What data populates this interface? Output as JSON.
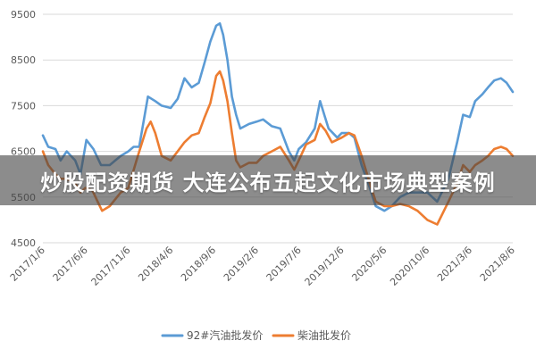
{
  "banner": {
    "title": "炒股配资期货 大连公布五起文化市场典型案例"
  },
  "colors": {
    "gasoline": "#5b9bd5",
    "diesel": "#ed7d31",
    "grid": "#d9d9d9",
    "text": "#595959"
  },
  "chart_data": {
    "type": "line",
    "title": "",
    "xlabel": "",
    "ylabel": "",
    "ylim": [
      4500,
      9500
    ],
    "yticks": [
      4500,
      5500,
      6500,
      7500,
      8500,
      9500
    ],
    "xlim": [
      "2017-01-06",
      "2021-08-06"
    ],
    "xtick_labels": [
      "2017/1/6",
      "2017/6/6",
      "2017/11/6",
      "2018/4/6",
      "2018/9/6",
      "2019/2/6",
      "2019/7/6",
      "2019/12/6",
      "2020/5/6",
      "2020/10/6",
      "2021/3/6",
      "2021/8/6"
    ],
    "grid": "horizontal",
    "legend": "bottom-center",
    "series": [
      {
        "name": "92#汽油批发价",
        "color": "#5b9bd5",
        "points": [
          [
            "2017-01-06",
            6850
          ],
          [
            "2017-01-25",
            6600
          ],
          [
            "2017-02-20",
            6550
          ],
          [
            "2017-03-10",
            6300
          ],
          [
            "2017-04-01",
            6500
          ],
          [
            "2017-05-01",
            6300
          ],
          [
            "2017-05-20",
            6000
          ],
          [
            "2017-06-10",
            6750
          ],
          [
            "2017-07-05",
            6550
          ],
          [
            "2017-08-01",
            6200
          ],
          [
            "2017-09-01",
            6200
          ],
          [
            "2017-10-10",
            6400
          ],
          [
            "2017-11-06",
            6500
          ],
          [
            "2017-11-25",
            6600
          ],
          [
            "2017-12-15",
            6600
          ],
          [
            "2018-01-15",
            7700
          ],
          [
            "2018-02-10",
            7600
          ],
          [
            "2018-03-05",
            7500
          ],
          [
            "2018-04-06",
            7450
          ],
          [
            "2018-05-01",
            7650
          ],
          [
            "2018-05-25",
            8100
          ],
          [
            "2018-06-20",
            7900
          ],
          [
            "2018-07-15",
            8000
          ],
          [
            "2018-08-05",
            8450
          ],
          [
            "2018-08-25",
            8900
          ],
          [
            "2018-09-15",
            9250
          ],
          [
            "2018-09-28",
            9300
          ],
          [
            "2018-10-10",
            9050
          ],
          [
            "2018-10-25",
            8500
          ],
          [
            "2018-11-10",
            7700
          ],
          [
            "2018-11-25",
            7300
          ],
          [
            "2018-12-10",
            7000
          ],
          [
            "2019-01-10",
            7100
          ],
          [
            "2019-02-06",
            7150
          ],
          [
            "2019-03-01",
            7200
          ],
          [
            "2019-04-01",
            7050
          ],
          [
            "2019-05-01",
            7000
          ],
          [
            "2019-06-01",
            6500
          ],
          [
            "2019-06-20",
            6300
          ],
          [
            "2019-07-06",
            6550
          ],
          [
            "2019-08-01",
            6700
          ],
          [
            "2019-09-01",
            7000
          ],
          [
            "2019-09-20",
            7600
          ],
          [
            "2019-10-05",
            7300
          ],
          [
            "2019-10-20",
            7000
          ],
          [
            "2019-11-20",
            6800
          ],
          [
            "2019-12-06",
            6900
          ],
          [
            "2020-01-01",
            6900
          ],
          [
            "2020-01-20",
            6800
          ],
          [
            "2020-02-15",
            6200
          ],
          [
            "2020-03-15",
            5700
          ],
          [
            "2020-04-05",
            5300
          ],
          [
            "2020-05-06",
            5200
          ],
          [
            "2020-06-01",
            5300
          ],
          [
            "2020-07-01",
            5500
          ],
          [
            "2020-08-01",
            5600
          ],
          [
            "2020-09-01",
            5600
          ],
          [
            "2020-10-06",
            5600
          ],
          [
            "2020-11-10",
            5400
          ],
          [
            "2020-12-20",
            5900
          ],
          [
            "2021-01-20",
            6700
          ],
          [
            "2021-02-10",
            7300
          ],
          [
            "2021-03-06",
            7250
          ],
          [
            "2021-03-25",
            7600
          ],
          [
            "2021-04-20",
            7750
          ],
          [
            "2021-05-10",
            7900
          ],
          [
            "2021-06-01",
            8050
          ],
          [
            "2021-06-25",
            8100
          ],
          [
            "2021-07-15",
            8000
          ],
          [
            "2021-08-06",
            7800
          ]
        ]
      },
      {
        "name": "柴油批发价",
        "color": "#ed7d31",
        "points": [
          [
            "2017-01-06",
            6500
          ],
          [
            "2017-01-25",
            6200
          ],
          [
            "2017-02-20",
            6000
          ],
          [
            "2017-03-10",
            5900
          ],
          [
            "2017-04-01",
            5900
          ],
          [
            "2017-05-01",
            5800
          ],
          [
            "2017-05-20",
            5600
          ],
          [
            "2017-06-06",
            5700
          ],
          [
            "2017-07-01",
            5650
          ],
          [
            "2017-07-20",
            5400
          ],
          [
            "2017-08-05",
            5200
          ],
          [
            "2017-09-01",
            5300
          ],
          [
            "2017-10-10",
            5600
          ],
          [
            "2017-11-06",
            5700
          ],
          [
            "2017-12-10",
            6400
          ],
          [
            "2018-01-10",
            7000
          ],
          [
            "2018-01-25",
            7150
          ],
          [
            "2018-02-10",
            6900
          ],
          [
            "2018-03-05",
            6400
          ],
          [
            "2018-04-06",
            6300
          ],
          [
            "2018-05-01",
            6500
          ],
          [
            "2018-05-25",
            6700
          ],
          [
            "2018-06-20",
            6850
          ],
          [
            "2018-07-15",
            6900
          ],
          [
            "2018-08-05",
            7250
          ],
          [
            "2018-08-25",
            7550
          ],
          [
            "2018-09-15",
            8150
          ],
          [
            "2018-09-28",
            8250
          ],
          [
            "2018-10-10",
            8050
          ],
          [
            "2018-10-25",
            7600
          ],
          [
            "2018-11-10",
            6900
          ],
          [
            "2018-11-25",
            6300
          ],
          [
            "2018-12-10",
            6150
          ],
          [
            "2019-01-10",
            6250
          ],
          [
            "2019-02-06",
            6250
          ],
          [
            "2019-03-01",
            6400
          ],
          [
            "2019-04-01",
            6500
          ],
          [
            "2019-05-01",
            6600
          ],
          [
            "2019-06-01",
            6300
          ],
          [
            "2019-06-20",
            6100
          ],
          [
            "2019-07-06",
            6300
          ],
          [
            "2019-08-01",
            6650
          ],
          [
            "2019-09-01",
            6750
          ],
          [
            "2019-09-20",
            7100
          ],
          [
            "2019-10-10",
            6950
          ],
          [
            "2019-11-01",
            6700
          ],
          [
            "2019-12-06",
            6800
          ],
          [
            "2020-01-01",
            6900
          ],
          [
            "2020-01-20",
            6850
          ],
          [
            "2020-02-15",
            6400
          ],
          [
            "2020-03-15",
            5800
          ],
          [
            "2020-04-05",
            5400
          ],
          [
            "2020-05-06",
            5300
          ],
          [
            "2020-06-01",
            5300
          ],
          [
            "2020-07-01",
            5350
          ],
          [
            "2020-08-01",
            5300
          ],
          [
            "2020-09-01",
            5200
          ],
          [
            "2020-10-06",
            5000
          ],
          [
            "2020-11-10",
            4900
          ],
          [
            "2020-12-20",
            5400
          ],
          [
            "2021-01-20",
            5800
          ],
          [
            "2021-02-10",
            6200
          ],
          [
            "2021-03-06",
            6050
          ],
          [
            "2021-03-25",
            6200
          ],
          [
            "2021-04-20",
            6300
          ],
          [
            "2021-05-10",
            6400
          ],
          [
            "2021-06-01",
            6550
          ],
          [
            "2021-06-25",
            6600
          ],
          [
            "2021-07-15",
            6550
          ],
          [
            "2021-08-06",
            6400
          ]
        ]
      }
    ]
  }
}
